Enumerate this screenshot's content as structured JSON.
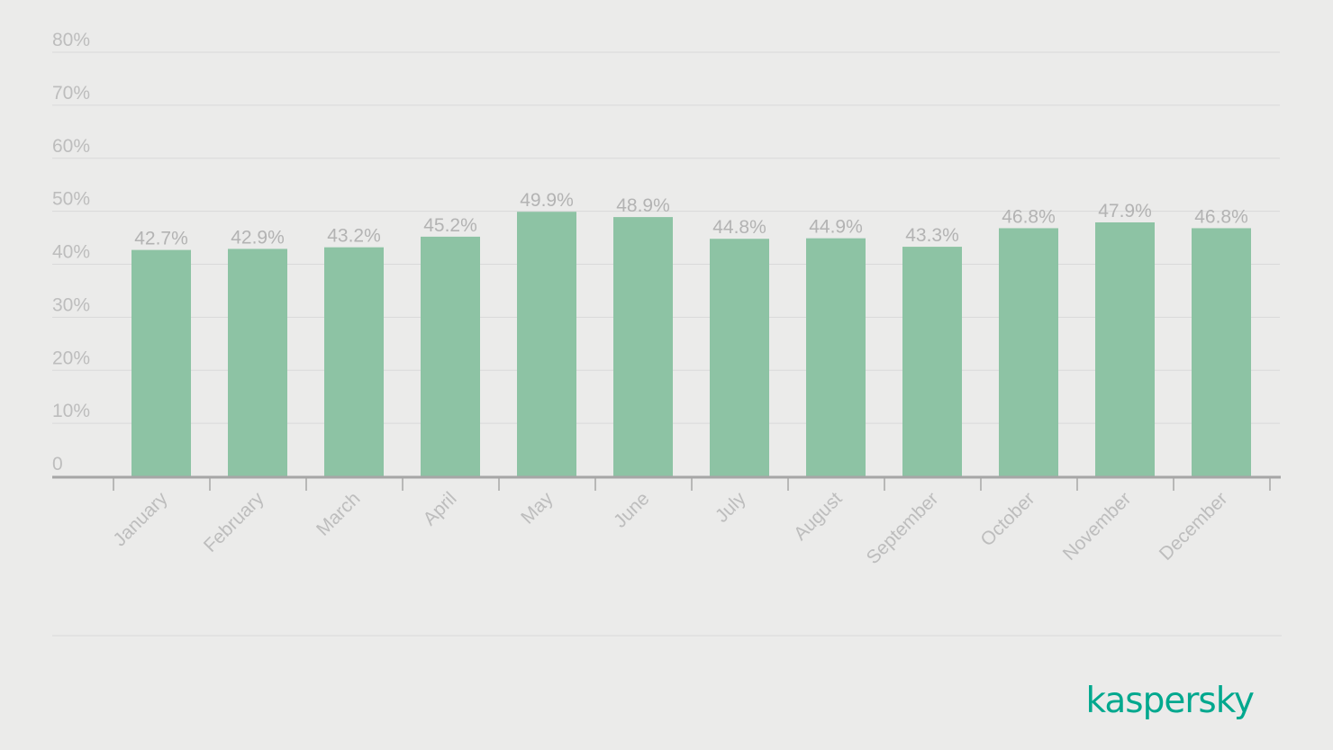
{
  "colors": {
    "background": "#ebebea",
    "bar": "#8dc3a4",
    "grid": "#d9d9d9",
    "axis": "#a6a6a6",
    "tick_text": "#bdbdbd",
    "value_text": "#b3b3b3",
    "brand": "#00a88e"
  },
  "chart_data": {
    "type": "bar",
    "categories": [
      "January",
      "February",
      "March",
      "April",
      "May",
      "June",
      "July",
      "August",
      "September",
      "October",
      "November",
      "December"
    ],
    "values": [
      42.7,
      42.9,
      43.2,
      45.2,
      49.9,
      48.9,
      44.8,
      44.9,
      43.3,
      46.8,
      47.9,
      46.8
    ],
    "value_labels": [
      "42.7%",
      "42.9%",
      "43.2%",
      "45.2%",
      "49.9%",
      "48.9%",
      "44.8%",
      "44.9%",
      "43.3%",
      "46.8%",
      "47.9%",
      "46.8%"
    ],
    "ylim": [
      0,
      80
    ],
    "y_ticks": [
      0,
      10,
      20,
      30,
      40,
      50,
      60,
      70,
      80
    ],
    "y_tick_labels": [
      "0",
      "10%",
      "20%",
      "30%",
      "40%",
      "50%",
      "60%",
      "70%",
      "80%"
    ],
    "grid": true,
    "legend": "none",
    "x_tick_label_rotation": "-45"
  },
  "brand": {
    "logo_text": "kaspersky"
  }
}
